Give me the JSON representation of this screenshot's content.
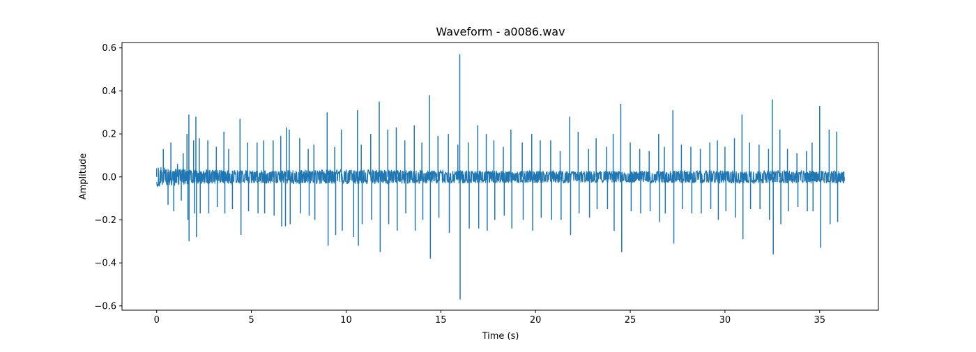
{
  "chart_data": {
    "type": "line",
    "title": "Waveform - a0086.wav",
    "xlabel": "Time (s)",
    "ylabel": "Amplitude",
    "xlim": [
      -1.83,
      38.1
    ],
    "ylim": [
      -0.62,
      0.625
    ],
    "x_ticks": [
      0,
      5,
      10,
      15,
      20,
      25,
      30,
      35
    ],
    "x_tick_labels": [
      "0",
      "5",
      "10",
      "15",
      "20",
      "25",
      "30",
      "35"
    ],
    "y_ticks": [
      -0.6,
      -0.4,
      -0.2,
      0.0,
      0.2,
      0.4,
      0.6
    ],
    "y_tick_labels": [
      "−0.6",
      "−0.4",
      "−0.2",
      "0.0",
      "0.2",
      "0.4",
      "0.6"
    ],
    "grid": false,
    "line_color": "#1f77b4",
    "noise_envelope": [
      {
        "x": 0.0,
        "y": 0.05
      },
      {
        "x": 0.5,
        "y": 0.045
      },
      {
        "x": 2.0,
        "y": 0.035
      },
      {
        "x": 5.0,
        "y": 0.03
      },
      {
        "x": 10.0,
        "y": 0.035
      },
      {
        "x": 16.0,
        "y": 0.03
      },
      {
        "x": 20.0,
        "y": 0.028
      },
      {
        "x": 25.0,
        "y": 0.027
      },
      {
        "x": 30.0,
        "y": 0.03
      },
      {
        "x": 35.0,
        "y": 0.03
      },
      {
        "x": 36.3,
        "y": 0.03
      }
    ],
    "series": [
      {
        "values": [
          {
            "x": 0.0,
            "y": 0.04
          },
          {
            "x": 0.35,
            "y": 0.13
          },
          {
            "x": 0.6,
            "y": -0.13
          },
          {
            "x": 0.75,
            "y": 0.16
          },
          {
            "x": 0.9,
            "y": -0.16
          },
          {
            "x": 1.1,
            "y": 0.06
          },
          {
            "x": 1.3,
            "y": -0.11
          },
          {
            "x": 1.4,
            "y": 0.11
          },
          {
            "x": 1.6,
            "y": 0.2
          },
          {
            "x": 1.65,
            "y": -0.2
          },
          {
            "x": 1.71,
            "y": -0.3
          },
          {
            "x": 1.7,
            "y": 0.29
          },
          {
            "x": 1.95,
            "y": 0.17
          },
          {
            "x": 2.0,
            "y": -0.17
          },
          {
            "x": 2.07,
            "y": 0.28
          },
          {
            "x": 2.1,
            "y": -0.28
          },
          {
            "x": 2.25,
            "y": 0.18
          },
          {
            "x": 2.3,
            "y": -0.17
          },
          {
            "x": 2.7,
            "y": 0.17
          },
          {
            "x": 2.75,
            "y": -0.17
          },
          {
            "x": 3.15,
            "y": 0.14
          },
          {
            "x": 3.2,
            "y": -0.14
          },
          {
            "x": 3.55,
            "y": 0.21
          },
          {
            "x": 3.6,
            "y": -0.17
          },
          {
            "x": 3.8,
            "y": 0.13
          },
          {
            "x": 4.0,
            "y": -0.15
          },
          {
            "x": 4.4,
            "y": 0.27
          },
          {
            "x": 4.45,
            "y": -0.27
          },
          {
            "x": 4.8,
            "y": 0.16
          },
          {
            "x": 4.85,
            "y": -0.16
          },
          {
            "x": 5.3,
            "y": 0.16
          },
          {
            "x": 5.35,
            "y": -0.17
          },
          {
            "x": 5.65,
            "y": 0.17
          },
          {
            "x": 5.7,
            "y": -0.17
          },
          {
            "x": 6.15,
            "y": 0.17
          },
          {
            "x": 6.2,
            "y": -0.18
          },
          {
            "x": 6.55,
            "y": 0.19
          },
          {
            "x": 6.6,
            "y": -0.23
          },
          {
            "x": 6.8,
            "y": -0.23
          },
          {
            "x": 6.85,
            "y": 0.23
          },
          {
            "x": 7.0,
            "y": 0.22
          },
          {
            "x": 7.05,
            "y": -0.22
          },
          {
            "x": 7.55,
            "y": 0.18
          },
          {
            "x": 7.6,
            "y": -0.17
          },
          {
            "x": 8.0,
            "y": 0.13
          },
          {
            "x": 8.05,
            "y": -0.18
          },
          {
            "x": 8.3,
            "y": 0.15
          },
          {
            "x": 8.35,
            "y": -0.2
          },
          {
            "x": 9.0,
            "y": 0.3
          },
          {
            "x": 9.05,
            "y": -0.32
          },
          {
            "x": 9.4,
            "y": 0.14
          },
          {
            "x": 9.45,
            "y": -0.27
          },
          {
            "x": 9.75,
            "y": 0.22
          },
          {
            "x": 9.8,
            "y": -0.25
          },
          {
            "x": 10.4,
            "y": -0.28
          },
          {
            "x": 10.6,
            "y": 0.31
          },
          {
            "x": 10.65,
            "y": -0.32
          },
          {
            "x": 10.8,
            "y": 0.15
          },
          {
            "x": 10.85,
            "y": -0.22
          },
          {
            "x": 11.3,
            "y": 0.2
          },
          {
            "x": 11.35,
            "y": -0.2
          },
          {
            "x": 11.75,
            "y": 0.35
          },
          {
            "x": 11.8,
            "y": -0.35
          },
          {
            "x": 12.2,
            "y": 0.22
          },
          {
            "x": 12.25,
            "y": -0.22
          },
          {
            "x": 12.65,
            "y": 0.23
          },
          {
            "x": 12.7,
            "y": -0.25
          },
          {
            "x": 13.1,
            "y": 0.17
          },
          {
            "x": 13.15,
            "y": -0.17
          },
          {
            "x": 13.6,
            "y": 0.24
          },
          {
            "x": 13.65,
            "y": -0.25
          },
          {
            "x": 14.0,
            "y": 0.16
          },
          {
            "x": 14.05,
            "y": -0.2
          },
          {
            "x": 14.4,
            "y": 0.38
          },
          {
            "x": 14.45,
            "y": -0.38
          },
          {
            "x": 14.85,
            "y": 0.19
          },
          {
            "x": 14.9,
            "y": -0.19
          },
          {
            "x": 15.4,
            "y": 0.2
          },
          {
            "x": 15.45,
            "y": -0.26
          },
          {
            "x": 15.9,
            "y": 0.15
          },
          {
            "x": 16.0,
            "y": 0.57
          },
          {
            "x": 16.02,
            "y": -0.57
          },
          {
            "x": 16.45,
            "y": 0.16
          },
          {
            "x": 16.5,
            "y": -0.24
          },
          {
            "x": 16.95,
            "y": 0.24
          },
          {
            "x": 17.0,
            "y": -0.24
          },
          {
            "x": 17.4,
            "y": 0.2
          },
          {
            "x": 17.45,
            "y": -0.25
          },
          {
            "x": 17.8,
            "y": 0.17
          },
          {
            "x": 17.85,
            "y": -0.2
          },
          {
            "x": 18.3,
            "y": 0.14
          },
          {
            "x": 18.35,
            "y": -0.18
          },
          {
            "x": 18.7,
            "y": 0.22
          },
          {
            "x": 18.75,
            "y": -0.24
          },
          {
            "x": 19.3,
            "y": 0.16
          },
          {
            "x": 19.35,
            "y": -0.2
          },
          {
            "x": 19.8,
            "y": 0.2
          },
          {
            "x": 19.85,
            "y": -0.25
          },
          {
            "x": 20.25,
            "y": 0.17
          },
          {
            "x": 20.3,
            "y": -0.19
          },
          {
            "x": 20.8,
            "y": 0.17
          },
          {
            "x": 20.85,
            "y": -0.2
          },
          {
            "x": 21.3,
            "y": 0.12
          },
          {
            "x": 21.35,
            "y": -0.2
          },
          {
            "x": 21.8,
            "y": 0.28
          },
          {
            "x": 21.85,
            "y": -0.27
          },
          {
            "x": 22.25,
            "y": 0.21
          },
          {
            "x": 22.3,
            "y": -0.17
          },
          {
            "x": 22.8,
            "y": 0.13
          },
          {
            "x": 22.85,
            "y": -0.19
          },
          {
            "x": 23.2,
            "y": 0.18
          },
          {
            "x": 23.25,
            "y": -0.15
          },
          {
            "x": 23.75,
            "y": 0.14
          },
          {
            "x": 23.8,
            "y": -0.15
          },
          {
            "x": 24.1,
            "y": 0.2
          },
          {
            "x": 24.15,
            "y": -0.25
          },
          {
            "x": 24.5,
            "y": 0.34
          },
          {
            "x": 24.55,
            "y": -0.35
          },
          {
            "x": 25.0,
            "y": 0.16
          },
          {
            "x": 25.05,
            "y": -0.16
          },
          {
            "x": 25.5,
            "y": 0.13
          },
          {
            "x": 25.55,
            "y": -0.17
          },
          {
            "x": 26.0,
            "y": 0.12
          },
          {
            "x": 26.05,
            "y": -0.16
          },
          {
            "x": 26.5,
            "y": 0.2
          },
          {
            "x": 26.55,
            "y": -0.21
          },
          {
            "x": 26.8,
            "y": 0.14
          },
          {
            "x": 26.85,
            "y": -0.17
          },
          {
            "x": 27.25,
            "y": 0.31
          },
          {
            "x": 27.3,
            "y": -0.31
          },
          {
            "x": 27.7,
            "y": 0.15
          },
          {
            "x": 27.75,
            "y": -0.15
          },
          {
            "x": 28.2,
            "y": 0.14
          },
          {
            "x": 28.25,
            "y": -0.17
          },
          {
            "x": 28.7,
            "y": 0.13
          },
          {
            "x": 28.75,
            "y": -0.17
          },
          {
            "x": 29.2,
            "y": 0.16
          },
          {
            "x": 29.25,
            "y": -0.15
          },
          {
            "x": 29.6,
            "y": 0.17
          },
          {
            "x": 29.65,
            "y": -0.2
          },
          {
            "x": 30.0,
            "y": 0.14
          },
          {
            "x": 30.05,
            "y": -0.16
          },
          {
            "x": 30.5,
            "y": 0.18
          },
          {
            "x": 30.55,
            "y": -0.19
          },
          {
            "x": 30.9,
            "y": 0.29
          },
          {
            "x": 30.95,
            "y": -0.29
          },
          {
            "x": 31.3,
            "y": 0.16
          },
          {
            "x": 31.35,
            "y": -0.15
          },
          {
            "x": 31.8,
            "y": 0.15
          },
          {
            "x": 31.85,
            "y": -0.15
          },
          {
            "x": 32.3,
            "y": 0.13
          },
          {
            "x": 32.35,
            "y": -0.2
          },
          {
            "x": 32.5,
            "y": 0.36
          },
          {
            "x": 32.55,
            "y": -0.36
          },
          {
            "x": 32.9,
            "y": 0.22
          },
          {
            "x": 32.95,
            "y": -0.22
          },
          {
            "x": 33.3,
            "y": 0.13
          },
          {
            "x": 33.35,
            "y": -0.16
          },
          {
            "x": 33.8,
            "y": 0.11
          },
          {
            "x": 33.85,
            "y": -0.14
          },
          {
            "x": 34.3,
            "y": 0.12
          },
          {
            "x": 34.35,
            "y": -0.16
          },
          {
            "x": 34.6,
            "y": 0.16
          },
          {
            "x": 34.65,
            "y": -0.16
          },
          {
            "x": 35.0,
            "y": 0.33
          },
          {
            "x": 35.05,
            "y": -0.33
          },
          {
            "x": 35.5,
            "y": 0.22
          },
          {
            "x": 35.55,
            "y": -0.22
          },
          {
            "x": 35.9,
            "y": 0.21
          },
          {
            "x": 35.95,
            "y": -0.21
          },
          {
            "x": 36.2,
            "y": 0.02
          },
          {
            "x": 36.3,
            "y": -0.02
          }
        ]
      }
    ]
  }
}
